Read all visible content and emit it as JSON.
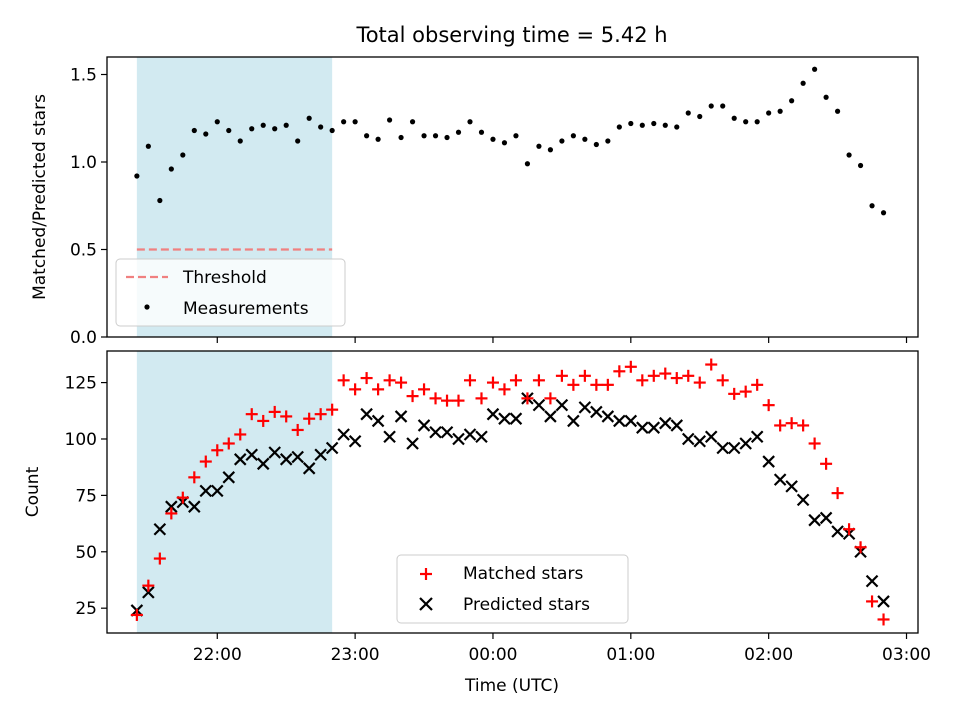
{
  "figure_title": "Total observing time = 5.42 h",
  "colors": {
    "band": "#add8e6",
    "threshold": "#f08080",
    "measurements": "#000000",
    "matched": "#ff0000",
    "predicted": "#000000"
  },
  "chart_data": [
    {
      "type": "scatter",
      "panel": "top",
      "ylabel": "Matched/Predicted stars",
      "xlabel": "",
      "ylim": [
        0,
        1.6
      ],
      "yticks": [
        0.0,
        0.5,
        1.0,
        1.5
      ],
      "ytick_labels": [
        "0.0",
        "0.5",
        "1.0",
        "1.5"
      ],
      "grid": false,
      "legend_position": "lower-left",
      "observing_window": [
        "21:25",
        "22:50"
      ],
      "threshold": {
        "name": "Threshold",
        "value": 0.5,
        "style": "dashed"
      },
      "series": [
        {
          "name": "Measurements",
          "marker": "dot",
          "x": [
            "21:25",
            "21:30",
            "21:35",
            "21:40",
            "21:45",
            "21:50",
            "21:55",
            "22:00",
            "22:05",
            "22:10",
            "22:15",
            "22:20",
            "22:25",
            "22:30",
            "22:35",
            "22:40",
            "22:45",
            "22:50",
            "22:55",
            "23:00",
            "23:05",
            "23:10",
            "23:15",
            "23:20",
            "23:25",
            "23:30",
            "23:35",
            "23:40",
            "23:45",
            "23:50",
            "23:55",
            "00:00",
            "00:05",
            "00:10",
            "00:15",
            "00:20",
            "00:25",
            "00:30",
            "00:35",
            "00:40",
            "00:45",
            "00:50",
            "00:55",
            "01:00",
            "01:05",
            "01:10",
            "01:15",
            "01:20",
            "01:25",
            "01:30",
            "01:35",
            "01:40",
            "01:45",
            "01:50",
            "01:55",
            "02:00",
            "02:05",
            "02:10",
            "02:15",
            "02:20",
            "02:25",
            "02:30",
            "02:35",
            "02:40",
            "02:45",
            "02:50"
          ],
          "y": [
            0.92,
            1.09,
            0.78,
            0.96,
            1.04,
            1.18,
            1.16,
            1.23,
            1.18,
            1.12,
            1.19,
            1.21,
            1.19,
            1.21,
            1.12,
            1.25,
            1.2,
            1.18,
            1.23,
            1.23,
            1.15,
            1.13,
            1.24,
            1.14,
            1.23,
            1.15,
            1.15,
            1.14,
            1.17,
            1.23,
            1.17,
            1.13,
            1.11,
            1.15,
            0.99,
            1.09,
            1.07,
            1.12,
            1.15,
            1.13,
            1.1,
            1.12,
            1.2,
            1.22,
            1.21,
            1.22,
            1.21,
            1.2,
            1.28,
            1.26,
            1.32,
            1.32,
            1.25,
            1.23,
            1.23,
            1.28,
            1.29,
            1.35,
            1.45,
            1.53,
            1.37,
            1.29,
            1.04,
            0.98,
            0.75,
            0.71
          ]
        }
      ]
    },
    {
      "type": "scatter",
      "panel": "bottom",
      "ylabel": "Count",
      "xlabel": "Time (UTC)",
      "xlim": [
        "21:12",
        "03:05"
      ],
      "xticks": [
        "22:00",
        "23:00",
        "00:00",
        "01:00",
        "02:00",
        "03:00"
      ],
      "ylim": [
        14,
        139
      ],
      "yticks": [
        25,
        50,
        75,
        100,
        125
      ],
      "ytick_labels": [
        "25",
        "50",
        "75",
        "100",
        "125"
      ],
      "grid": false,
      "legend_position": "lower-center",
      "series": [
        {
          "name": "Matched stars",
          "marker": "plus",
          "x": [
            "21:25",
            "21:30",
            "21:35",
            "21:40",
            "21:45",
            "21:50",
            "21:55",
            "22:00",
            "22:05",
            "22:10",
            "22:15",
            "22:20",
            "22:25",
            "22:30",
            "22:35",
            "22:40",
            "22:45",
            "22:50",
            "22:55",
            "23:00",
            "23:05",
            "23:10",
            "23:15",
            "23:20",
            "23:25",
            "23:30",
            "23:35",
            "23:40",
            "23:45",
            "23:50",
            "23:55",
            "00:00",
            "00:05",
            "00:10",
            "00:15",
            "00:20",
            "00:25",
            "00:30",
            "00:35",
            "00:40",
            "00:45",
            "00:50",
            "00:55",
            "01:00",
            "01:05",
            "01:10",
            "01:15",
            "01:20",
            "01:25",
            "01:30",
            "01:35",
            "01:40",
            "01:45",
            "01:50",
            "01:55",
            "02:00",
            "02:05",
            "02:10",
            "02:15",
            "02:20",
            "02:25",
            "02:30",
            "02:35",
            "02:40",
            "02:45",
            "02:50"
          ],
          "y": [
            22,
            35,
            47,
            67,
            74,
            83,
            90,
            95,
            98,
            102,
            111,
            108,
            112,
            110,
            104,
            109,
            111,
            113,
            126,
            122,
            127,
            122,
            126,
            125,
            119,
            122,
            118,
            117,
            117,
            126,
            118,
            125,
            122,
            126,
            118,
            126,
            118,
            128,
            124,
            128,
            124,
            124,
            130,
            132,
            126,
            128,
            129,
            127,
            128,
            125,
            133,
            126,
            120,
            121,
            124,
            115,
            106,
            107,
            106,
            98,
            89,
            76,
            60,
            52,
            28,
            20
          ]
        },
        {
          "name": "Predicted stars",
          "marker": "x",
          "x": [
            "21:25",
            "21:30",
            "21:35",
            "21:40",
            "21:45",
            "21:50",
            "21:55",
            "22:00",
            "22:05",
            "22:10",
            "22:15",
            "22:20",
            "22:25",
            "22:30",
            "22:35",
            "22:40",
            "22:45",
            "22:50",
            "22:55",
            "23:00",
            "23:05",
            "23:10",
            "23:15",
            "23:20",
            "23:25",
            "23:30",
            "23:35",
            "23:40",
            "23:45",
            "23:50",
            "23:55",
            "00:00",
            "00:05",
            "00:10",
            "00:15",
            "00:20",
            "00:25",
            "00:30",
            "00:35",
            "00:40",
            "00:45",
            "00:50",
            "00:55",
            "01:00",
            "01:05",
            "01:10",
            "01:15",
            "01:20",
            "01:25",
            "01:30",
            "01:35",
            "01:40",
            "01:45",
            "01:50",
            "01:55",
            "02:00",
            "02:05",
            "02:10",
            "02:15",
            "02:20",
            "02:25",
            "02:30",
            "02:35",
            "02:40",
            "02:45",
            "02:50"
          ],
          "y": [
            24,
            32,
            60,
            70,
            72,
            70,
            77,
            77,
            83,
            91,
            93,
            89,
            94,
            91,
            92,
            87,
            93,
            96,
            102,
            99,
            111,
            108,
            101,
            110,
            98,
            106,
            103,
            103,
            100,
            102,
            101,
            111,
            109,
            109,
            118,
            115,
            110,
            115,
            108,
            114,
            112,
            110,
            108,
            108,
            105,
            105,
            107,
            106,
            100,
            99,
            101,
            96,
            96,
            98,
            101,
            90,
            82,
            79,
            73,
            64,
            65,
            59,
            58,
            50,
            37,
            28
          ]
        }
      ]
    }
  ]
}
